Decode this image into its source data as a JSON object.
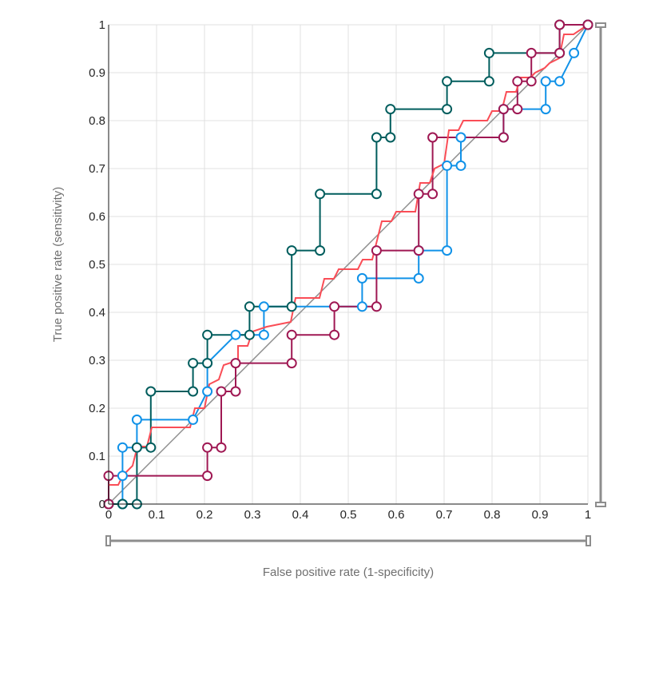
{
  "chart_data": {
    "type": "line",
    "xlabel": "False positive rate (1-specificity)",
    "ylabel": "True positive rate (sensitivity)",
    "xlim": [
      0,
      1
    ],
    "ylim": [
      0,
      1
    ],
    "x_ticks": [
      "0",
      "0.1",
      "0.2",
      "0.3",
      "0.4",
      "0.5",
      "0.6",
      "0.7",
      "0.8",
      "0.9",
      "1"
    ],
    "y_ticks": [
      "0",
      "0.1",
      "0.2",
      "0.3",
      "0.4",
      "0.5",
      "0.6",
      "0.7",
      "0.8",
      "0.9",
      "1"
    ],
    "grid": true,
    "diagonal_reference": true,
    "series": [
      {
        "color": "#1192e8",
        "markers": true,
        "points": [
          [
            0,
            0
          ],
          [
            0.029,
            0
          ],
          [
            0.029,
            0.059
          ],
          [
            0.029,
            0.118
          ],
          [
            0.059,
            0.118
          ],
          [
            0.059,
            0.176
          ],
          [
            0.176,
            0.176
          ],
          [
            0.206,
            0.235
          ],
          [
            0.206,
            0.294
          ],
          [
            0.265,
            0.353
          ],
          [
            0.324,
            0.353
          ],
          [
            0.324,
            0.412
          ],
          [
            0.529,
            0.412
          ],
          [
            0.529,
            0.471
          ],
          [
            0.647,
            0.471
          ],
          [
            0.647,
            0.529
          ],
          [
            0.706,
            0.529
          ],
          [
            0.706,
            0.706
          ],
          [
            0.735,
            0.706
          ],
          [
            0.735,
            0.765
          ],
          [
            0.824,
            0.765
          ],
          [
            0.824,
            0.824
          ],
          [
            0.912,
            0.824
          ],
          [
            0.912,
            0.882
          ],
          [
            0.941,
            0.882
          ],
          [
            0.971,
            0.941
          ],
          [
            1,
            1
          ]
        ]
      },
      {
        "color": "#005d5d",
        "markers": true,
        "points": [
          [
            0,
            0
          ],
          [
            0.029,
            0
          ],
          [
            0.059,
            0
          ],
          [
            0.059,
            0.118
          ],
          [
            0.088,
            0.118
          ],
          [
            0.088,
            0.235
          ],
          [
            0.176,
            0.235
          ],
          [
            0.176,
            0.294
          ],
          [
            0.206,
            0.294
          ],
          [
            0.206,
            0.353
          ],
          [
            0.294,
            0.353
          ],
          [
            0.294,
            0.412
          ],
          [
            0.382,
            0.412
          ],
          [
            0.382,
            0.529
          ],
          [
            0.441,
            0.529
          ],
          [
            0.441,
            0.647
          ],
          [
            0.559,
            0.647
          ],
          [
            0.559,
            0.765
          ],
          [
            0.588,
            0.765
          ],
          [
            0.588,
            0.824
          ],
          [
            0.706,
            0.824
          ],
          [
            0.706,
            0.882
          ],
          [
            0.794,
            0.882
          ],
          [
            0.794,
            0.941
          ],
          [
            0.941,
            0.941
          ],
          [
            0.941,
            1
          ],
          [
            1,
            1
          ]
        ]
      },
      {
        "color": "#9f1853",
        "markers": true,
        "points": [
          [
            0,
            0
          ],
          [
            0,
            0.059
          ],
          [
            0.206,
            0.059
          ],
          [
            0.206,
            0.118
          ],
          [
            0.235,
            0.118
          ],
          [
            0.235,
            0.235
          ],
          [
            0.265,
            0.235
          ],
          [
            0.265,
            0.294
          ],
          [
            0.382,
            0.294
          ],
          [
            0.382,
            0.353
          ],
          [
            0.471,
            0.353
          ],
          [
            0.471,
            0.412
          ],
          [
            0.559,
            0.412
          ],
          [
            0.559,
            0.529
          ],
          [
            0.647,
            0.529
          ],
          [
            0.647,
            0.647
          ],
          [
            0.676,
            0.647
          ],
          [
            0.676,
            0.765
          ],
          [
            0.824,
            0.765
          ],
          [
            0.824,
            0.824
          ],
          [
            0.853,
            0.824
          ],
          [
            0.853,
            0.882
          ],
          [
            0.882,
            0.882
          ],
          [
            0.882,
            0.941
          ],
          [
            0.941,
            0.941
          ],
          [
            0.941,
            1
          ],
          [
            1,
            1
          ]
        ]
      },
      {
        "color": "#fa4d56",
        "markers": false,
        "points": [
          [
            0,
            0.04
          ],
          [
            0.02,
            0.04
          ],
          [
            0.03,
            0.06
          ],
          [
            0.05,
            0.08
          ],
          [
            0.06,
            0.12
          ],
          [
            0.08,
            0.12
          ],
          [
            0.09,
            0.16
          ],
          [
            0.17,
            0.16
          ],
          [
            0.18,
            0.2
          ],
          [
            0.2,
            0.2
          ],
          [
            0.21,
            0.25
          ],
          [
            0.23,
            0.26
          ],
          [
            0.24,
            0.29
          ],
          [
            0.27,
            0.3
          ],
          [
            0.27,
            0.33
          ],
          [
            0.29,
            0.33
          ],
          [
            0.3,
            0.36
          ],
          [
            0.33,
            0.37
          ],
          [
            0.38,
            0.38
          ],
          [
            0.39,
            0.43
          ],
          [
            0.44,
            0.43
          ],
          [
            0.45,
            0.47
          ],
          [
            0.47,
            0.47
          ],
          [
            0.48,
            0.49
          ],
          [
            0.52,
            0.49
          ],
          [
            0.53,
            0.51
          ],
          [
            0.55,
            0.51
          ],
          [
            0.56,
            0.55
          ],
          [
            0.57,
            0.59
          ],
          [
            0.59,
            0.59
          ],
          [
            0.6,
            0.61
          ],
          [
            0.64,
            0.61
          ],
          [
            0.65,
            0.67
          ],
          [
            0.67,
            0.67
          ],
          [
            0.68,
            0.7
          ],
          [
            0.7,
            0.71
          ],
          [
            0.71,
            0.78
          ],
          [
            0.73,
            0.78
          ],
          [
            0.74,
            0.8
          ],
          [
            0.79,
            0.8
          ],
          [
            0.8,
            0.82
          ],
          [
            0.82,
            0.82
          ],
          [
            0.83,
            0.86
          ],
          [
            0.85,
            0.86
          ],
          [
            0.86,
            0.89
          ],
          [
            0.88,
            0.89
          ],
          [
            0.89,
            0.9
          ],
          [
            0.91,
            0.91
          ],
          [
            0.92,
            0.92
          ],
          [
            0.94,
            0.93
          ],
          [
            0.95,
            0.98
          ],
          [
            0.97,
            0.98
          ],
          [
            1,
            1
          ]
        ]
      }
    ]
  }
}
